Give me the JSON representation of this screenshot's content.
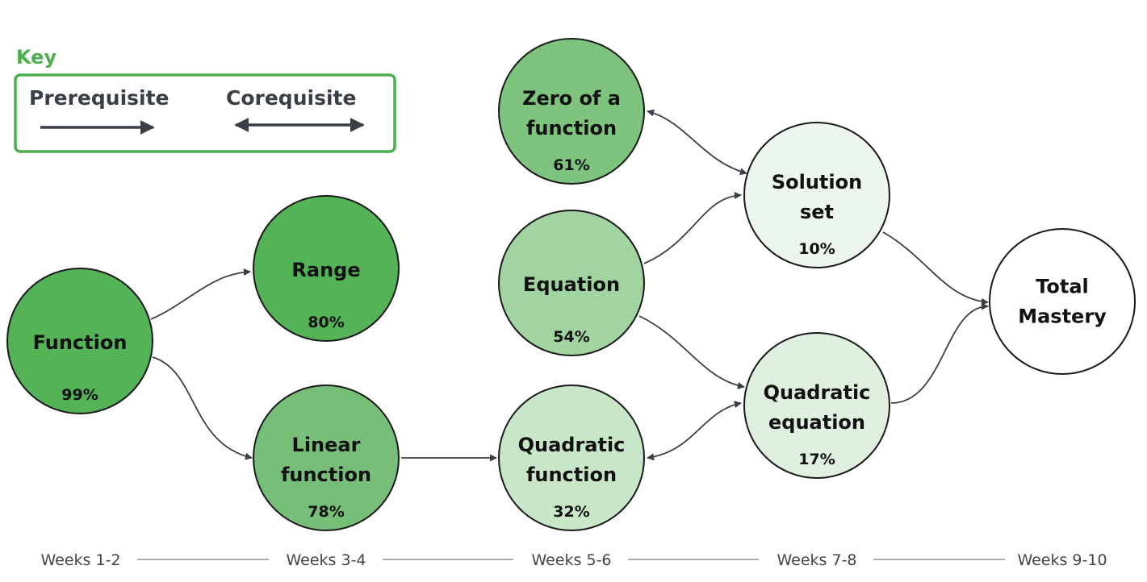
{
  "key": {
    "title": "Key",
    "prerequisite_label": "Prerequisite",
    "corequisite_label": "Corequisite",
    "accent_color": "#4caf50",
    "arrow_color": "#3a3f45"
  },
  "nodes": [
    {
      "id": "function",
      "lines": [
        "Function"
      ],
      "percent": "99%",
      "fill": "#54b257"
    },
    {
      "id": "range",
      "lines": [
        "Range"
      ],
      "percent": "80%",
      "fill": "#54b257"
    },
    {
      "id": "linear-function",
      "lines": [
        "Linear",
        "function"
      ],
      "percent": "78%",
      "fill": "#77bf79"
    },
    {
      "id": "zero-of-a-function",
      "lines": [
        "Zero of a",
        "function"
      ],
      "percent": "61%",
      "fill": "#7ec47f"
    },
    {
      "id": "equation",
      "lines": [
        "Equation"
      ],
      "percent": "54%",
      "fill": "#a1d4a1"
    },
    {
      "id": "quadratic-function",
      "lines": [
        "Quadratic",
        "function"
      ],
      "percent": "32%",
      "fill": "#c8e6c8"
    },
    {
      "id": "solution-set",
      "lines": [
        "Solution",
        "set"
      ],
      "percent": "10%",
      "fill": "#edf6ed"
    },
    {
      "id": "quadratic-equation",
      "lines": [
        "Quadratic",
        "equation"
      ],
      "percent": "17%",
      "fill": "#e0f0e0"
    },
    {
      "id": "total-mastery",
      "lines": [
        "Total",
        "Mastery"
      ],
      "percent": "",
      "fill": "#ffffff"
    }
  ],
  "edges": [
    {
      "from": "function",
      "to": "range",
      "type": "prerequisite"
    },
    {
      "from": "function",
      "to": "linear-function",
      "type": "prerequisite"
    },
    {
      "from": "linear-function",
      "to": "quadratic-function",
      "type": "prerequisite"
    },
    {
      "from": "zero-of-a-function",
      "to": "solution-set",
      "type": "corequisite"
    },
    {
      "from": "equation",
      "to": "solution-set",
      "type": "prerequisite"
    },
    {
      "from": "equation",
      "to": "quadratic-equation",
      "type": "prerequisite"
    },
    {
      "from": "quadratic-function",
      "to": "quadratic-equation",
      "type": "corequisite"
    },
    {
      "from": "solution-set",
      "to": "total-mastery",
      "type": "prerequisite"
    },
    {
      "from": "quadratic-equation",
      "to": "total-mastery",
      "type": "prerequisite"
    }
  ],
  "timeline": [
    "Weeks 1-2",
    "Weeks 3-4",
    "Weeks 5-6",
    "Weeks 7-8",
    "Weeks 9-10"
  ],
  "colors": {
    "node_stroke": "#1a1a1a",
    "edge": "#3a3f45",
    "timeline_line": "#555555"
  }
}
